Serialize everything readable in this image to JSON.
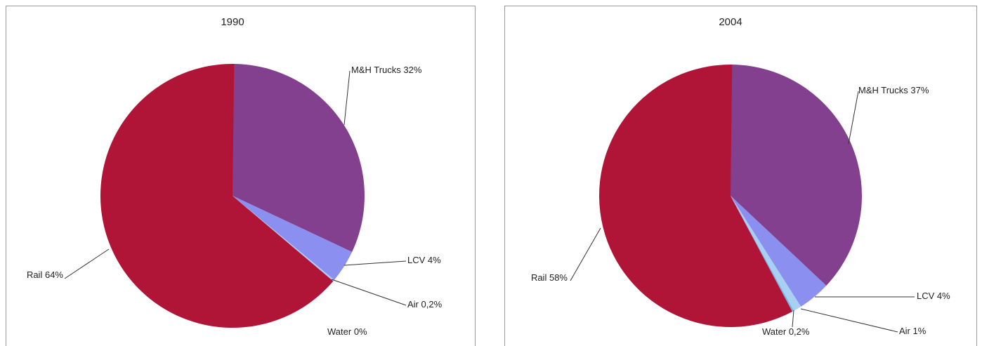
{
  "chart_data": [
    {
      "type": "pie",
      "title": "1990",
      "categories": [
        "M&H Trucks",
        "LCV",
        "Air",
        "Water",
        "Rail"
      ],
      "values": [
        32,
        4,
        0.2,
        0,
        64
      ],
      "value_labels": [
        "32%",
        "4%",
        "0,2%",
        "0%",
        "64%"
      ],
      "colors": [
        "#83408f",
        "#8b8ff0",
        "#a9d0f2",
        "#6fb6e8",
        "#b01538"
      ]
    },
    {
      "type": "pie",
      "title": "2004",
      "categories": [
        "M&H Trucks",
        "LCV",
        "Air",
        "Water",
        "Rail"
      ],
      "values": [
        37,
        4,
        1,
        0.2,
        58
      ],
      "value_labels": [
        "37%",
        "4%",
        "1%",
        "0,2%",
        "58%"
      ],
      "colors": [
        "#83408f",
        "#8b8ff0",
        "#a9d0f2",
        "#6fb6e8",
        "#b01538"
      ]
    }
  ]
}
